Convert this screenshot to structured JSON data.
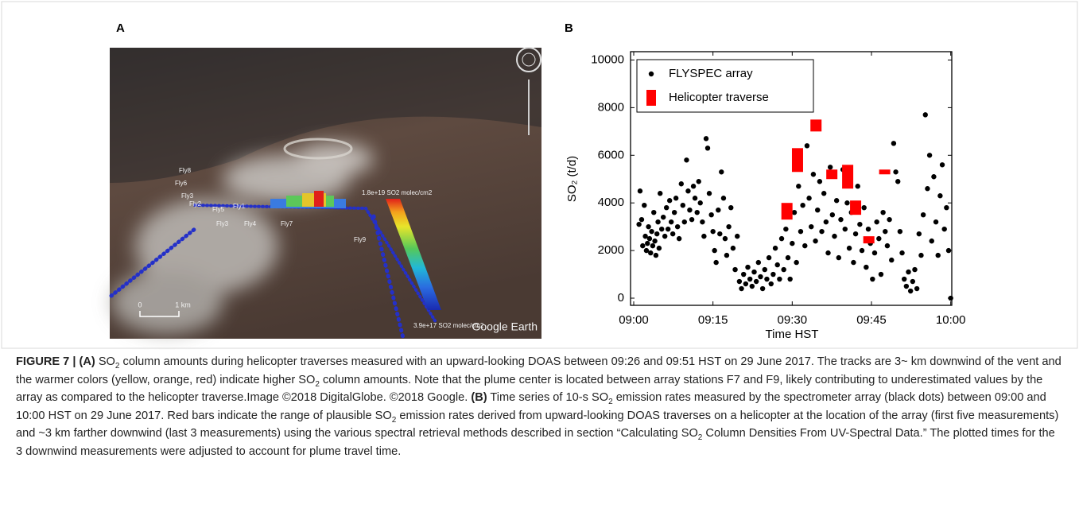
{
  "panel_a": {
    "label": "A",
    "map_labels": [
      "Fly8",
      "Fly6",
      "Fly3",
      "Fly2",
      "Fly5",
      "Fly1",
      "Fly3",
      "Fly4",
      "Fly7",
      "Fly9"
    ],
    "colorbar_max": "1.8e+19 SO2 molec/cm2",
    "colorbar_min": "3.9e+17 SO2 molec/cm2",
    "scale_zero": "0",
    "scale_length": "1 km",
    "watermark": "Google Earth"
  },
  "chart_data": {
    "type": "scatter",
    "panel_label": "B",
    "x_label": "Time HST",
    "y_label": "SO₂ (t/d)",
    "xlim": [
      -0.6,
      60.2
    ],
    "ylim": [
      -300,
      10350
    ],
    "xticks": [
      {
        "value": 0,
        "label": "09:00"
      },
      {
        "value": 15,
        "label": "09:15"
      },
      {
        "value": 30,
        "label": "09:30"
      },
      {
        "value": 45,
        "label": "09:45"
      },
      {
        "value": 60,
        "label": "10:00"
      }
    ],
    "yticks": [
      0,
      2000,
      4000,
      6000,
      8000,
      10000
    ],
    "grid": false,
    "legend": "upper-left",
    "series": [
      {
        "name": "FLYSPEC array",
        "color": "#000000",
        "marker": "dot",
        "x": [
          1,
          1.2,
          1.5,
          1.7,
          2,
          2.2,
          2.4,
          2.6,
          2.8,
          3,
          3.2,
          3.4,
          3.6,
          3.8,
          4,
          4.2,
          4.4,
          4.6,
          4.8,
          5,
          5.3,
          5.6,
          5.9,
          6.2,
          6.5,
          6.8,
          7.1,
          7.4,
          7.7,
          8,
          8.3,
          8.6,
          9,
          9.3,
          9.6,
          10,
          10.3,
          10.6,
          11,
          11.3,
          11.6,
          12,
          12.3,
          12.6,
          13,
          13.3,
          13.7,
          14,
          14.3,
          14.7,
          15,
          15.3,
          15.6,
          16,
          16.3,
          16.6,
          17,
          17.3,
          17.6,
          18,
          18.4,
          18.8,
          19.2,
          19.6,
          20,
          20.4,
          20.8,
          21.2,
          21.6,
          22,
          22.4,
          22.8,
          23.2,
          23.6,
          24,
          24.4,
          24.8,
          25.2,
          25.6,
          26,
          26.4,
          26.8,
          27.2,
          27.6,
          28,
          28.4,
          28.8,
          29.2,
          29.6,
          30,
          30.4,
          30.8,
          31.2,
          31.6,
          32,
          32.4,
          32.8,
          33.2,
          33.6,
          34,
          34.4,
          34.8,
          35.2,
          35.6,
          36,
          36.4,
          36.8,
          37.2,
          37.6,
          38,
          38.4,
          38.8,
          39.2,
          39.6,
          40,
          40.4,
          40.8,
          41.2,
          41.6,
          42,
          42.4,
          42.8,
          43.2,
          43.6,
          44,
          44.4,
          44.8,
          45.2,
          45.6,
          46,
          46.4,
          46.8,
          47.2,
          47.6,
          48,
          48.4,
          48.8,
          49.2,
          49.6,
          50,
          50.4,
          50.8,
          51.2,
          51.6,
          52,
          52.4,
          52.8,
          53.2,
          53.6,
          54,
          54.4,
          54.8,
          55.2,
          55.6,
          56,
          56.4,
          56.8,
          57.2,
          57.6,
          58,
          58.4,
          58.8,
          59.2,
          59.6,
          60
        ],
        "values": [
          3100,
          4500,
          3300,
          2200,
          3900,
          2600,
          2000,
          2300,
          3000,
          2500,
          1900,
          2800,
          2200,
          3600,
          2400,
          1800,
          2700,
          3200,
          2100,
          4400,
          2900,
          3400,
          2600,
          3800,
          2900,
          4100,
          3200,
          2700,
          3600,
          4200,
          3000,
          2500,
          4800,
          3900,
          3200,
          5800,
          4500,
          3700,
          3300,
          4700,
          4200,
          3600,
          4900,
          4000,
          3200,
          2600,
          6700,
          6300,
          4400,
          3500,
          2800,
          2000,
          1500,
          3700,
          2700,
          5300,
          4200,
          2500,
          1800,
          3000,
          3800,
          2100,
          1200,
          2600,
          700,
          400,
          1000,
          600,
          1300,
          800,
          500,
          1100,
          700,
          1500,
          900,
          400,
          1200,
          800,
          1700,
          600,
          1000,
          2100,
          1400,
          800,
          2500,
          1200,
          2900,
          1700,
          800,
          2300,
          3600,
          1500,
          4700,
          2800,
          3900,
          2200,
          6400,
          4200,
          3000,
          5200,
          2400,
          3700,
          4900,
          2800,
          4400,
          3200,
          1900,
          5500,
          3500,
          2600,
          4100,
          1700,
          3300,
          5400,
          2900,
          4000,
          2100,
          3600,
          1500,
          2700,
          4700,
          3100,
          2000,
          3800,
          1300,
          2900,
          2300,
          800,
          1900,
          3200,
          2500,
          1000,
          3600,
          2800,
          2200,
          3300,
          1600,
          6500,
          5300,
          4900,
          2800,
          1900,
          800,
          500,
          1100,
          300,
          700,
          1200,
          400,
          2700,
          1800,
          3500,
          7700,
          4600,
          6000,
          2400,
          5100,
          3200,
          1800,
          4300,
          5600,
          2900,
          3800,
          2000,
          0
        ]
      },
      {
        "name": "Helicopter traverse",
        "color": "#ff0000",
        "marker": "range-bar",
        "x": [
          29,
          31,
          34.5,
          37.5,
          40.5,
          42,
          44.5,
          47.5
        ],
        "values": [
          3300,
          5300,
          7000,
          5000,
          4600,
          3500,
          2300,
          5200
        ],
        "high": [
          4000,
          6300,
          7500,
          5400,
          5600,
          4100,
          2600,
          5400
        ]
      }
    ]
  },
  "caption": {
    "parts": [
      "FIGURE 7 | (A)",
      " SO",
      "2",
      " column amounts during helicopter traverses measured with an upward-looking DOAS between 09:26 and 09:51 HST on 29 June 2017. The tracks are 3~ km downwind of the vent and the warmer colors (yellow, orange, red) indicate higher SO",
      "2",
      " column amounts. Note that the plume center is located between array stations F7 and F9, likely contributing to underestimated values by the array as compared to the helicopter traverse.Image ©2018 DigitalGlobe. ©2018 Google. ",
      "(B)",
      " Time series of 10-s SO",
      "2",
      " emission rates measured by the spectrometer array (black dots) between 09:00 and 10:00 HST on 29 June 2017. Red bars indicate the range of plausible SO",
      "2",
      " emission rates derived from upward-looking DOAS traverses on a helicopter at the location of the array (first five measurements) and ~3 km farther downwind (last 3 measurements) using the various spectral retrieval methods described in section “Calculating SO",
      "2",
      " Column Densities From UV-Spectral Data.” The plotted times for the 3 downwind measurements were adjusted to account for plume travel time."
    ]
  }
}
